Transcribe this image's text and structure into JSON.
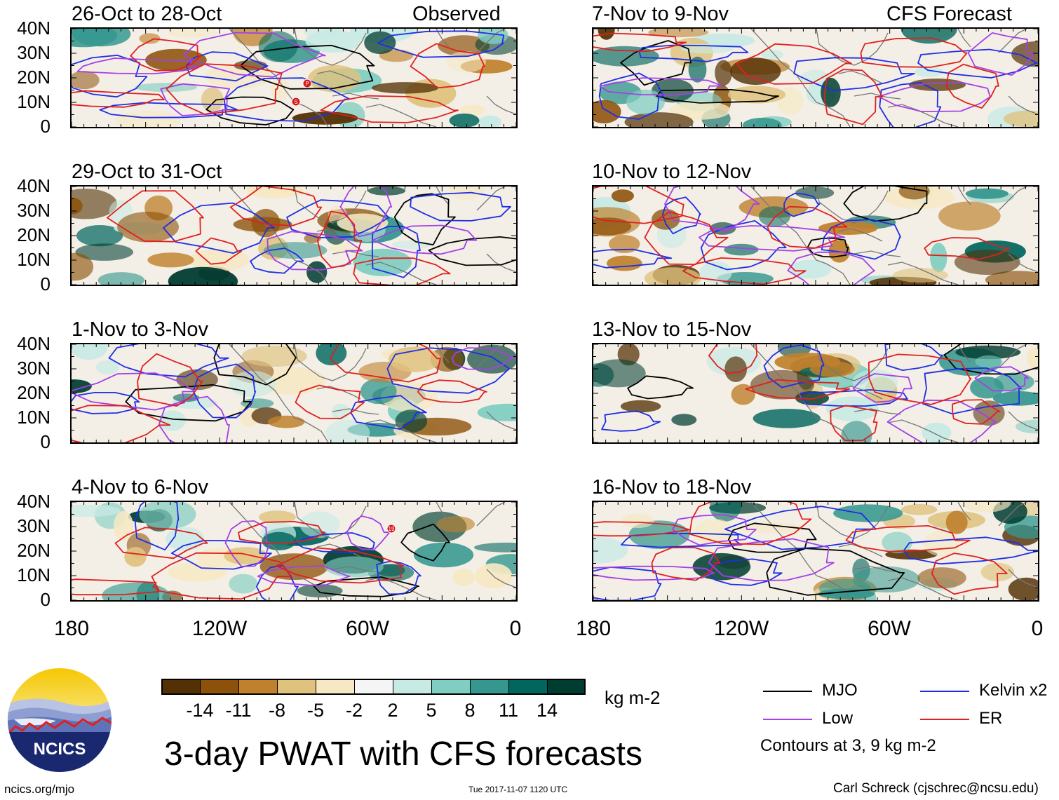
{
  "header": {
    "observed_label": "Observed",
    "forecast_label": "CFS Forecast"
  },
  "panels": [
    {
      "title": "26-Oct to 28-Oct",
      "column": "observed"
    },
    {
      "title": "29-Oct to 31-Oct",
      "column": "observed"
    },
    {
      "title": "1-Nov to 3-Nov",
      "column": "observed"
    },
    {
      "title": "4-Nov to 6-Nov",
      "column": "observed"
    },
    {
      "title": "7-Nov to 9-Nov",
      "column": "forecast"
    },
    {
      "title": "10-Nov to 12-Nov",
      "column": "forecast"
    },
    {
      "title": "13-Nov to 15-Nov",
      "column": "forecast"
    },
    {
      "title": "16-Nov to 18-Nov",
      "column": "forecast"
    }
  ],
  "chart_data": {
    "type": "heatmap",
    "title": "3-day PWAT with CFS forecasts",
    "variable": "PWAT anomaly",
    "units": "kg m-2",
    "y_ticks": [
      "40N",
      "30N",
      "20N",
      "10N",
      "0"
    ],
    "x_ticks": [
      "180",
      "120W",
      "60W",
      "0"
    ],
    "ylim": [
      0,
      40
    ],
    "xlim": [
      -180,
      0
    ],
    "colorbar": {
      "levels": [
        "-14",
        "-11",
        "-8",
        "-5",
        "-2",
        "2",
        "5",
        "8",
        "11",
        "14"
      ],
      "colors": [
        "#543005",
        "#8c510a",
        "#bf812d",
        "#dfc27d",
        "#f6e8c3",
        "#f5f5f5",
        "#c7eae5",
        "#80cdc1",
        "#35978f",
        "#01665e",
        "#003c30"
      ]
    },
    "contour_legend": [
      {
        "label": "MJO",
        "color": "#000000"
      },
      {
        "label": "Kelvin x2",
        "color": "#1f2ee6"
      },
      {
        "label": "Low",
        "color": "#a440e6"
      },
      {
        "label": "ER",
        "color": "#e0201e"
      }
    ],
    "contour_note": "Contours at 3, 9 kg m-2",
    "storm_markers": [
      {
        "panel": 0,
        "label": "P"
      },
      {
        "panel": 0,
        "label": "S"
      },
      {
        "panel": 3,
        "label": "19"
      }
    ]
  },
  "footer": {
    "logo_text": "NCICS",
    "url": "ncics.org/mjo",
    "timestamp": "Tue 2017-11-07 1120 UTC",
    "credit": "Carl Schreck (cjschrec@ncsu.edu)"
  }
}
